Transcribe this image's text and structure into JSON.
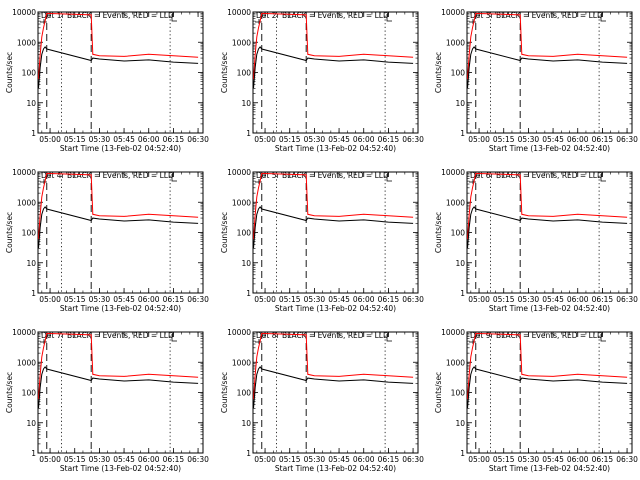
{
  "figure": {
    "xlabel": "Start Time (13-Feb-02 04:52:40)",
    "ylabel": "Counts/sec",
    "x_ticks": [
      "05:00",
      "05:15",
      "05:30",
      "05:45",
      "06:00",
      "06:15",
      "06:30"
    ],
    "y_ticks": [
      "1",
      "10",
      "100",
      "1000",
      "10000"
    ],
    "colors": {
      "events": "#000000",
      "lld": "#ff0000"
    }
  },
  "chart_data": [
    {
      "type": "line",
      "title": "Det 1r BLACK = Events, RED = LLD",
      "xlabel": "Start Time (13-Feb-02 04:52:40)",
      "ylabel": "Counts/sec",
      "ylog": true,
      "ylim": [
        1,
        10000
      ],
      "xlim": [
        "04:52:40",
        "06:33:00"
      ],
      "vlines_dashed": [
        "04:58:00",
        "05:25:00"
      ],
      "vlines_dotted": [
        "05:07:00",
        "06:13:00"
      ],
      "x": [
        "04:53",
        "04:54",
        "04:55",
        "04:56",
        "04:57",
        "04:58",
        "05:25",
        "05:26",
        "05:30",
        "05:45",
        "06:00",
        "06:15",
        "06:30"
      ],
      "series": [
        {
          "name": "Events",
          "values": [
            30,
            150,
            400,
            600,
            700,
            600,
            250,
            300,
            280,
            240,
            260,
            220,
            200
          ]
        },
        {
          "name": "LLD",
          "values": [
            60,
            400,
            1500,
            3000,
            5000,
            9000,
            8000,
            400,
            360,
            340,
            400,
            360,
            320
          ]
        }
      ]
    },
    {
      "type": "line",
      "title": "Det 2r BLACK = Events, RED = LLD",
      "xlabel": "Start Time (13-Feb-02 04:52:40)",
      "ylabel": "Counts/sec",
      "ylog": true,
      "ylim": [
        1,
        10000
      ],
      "xlim": [
        "04:52:40",
        "06:33:00"
      ],
      "vlines_dashed": [
        "04:58:00",
        "05:25:00"
      ],
      "vlines_dotted": [
        "05:07:00",
        "06:13:00"
      ],
      "x": [
        "04:53",
        "04:54",
        "04:55",
        "04:56",
        "04:57",
        "04:58",
        "05:25",
        "05:26",
        "05:30",
        "05:45",
        "06:00",
        "06:15",
        "06:30"
      ],
      "series": [
        {
          "name": "Events",
          "values": [
            30,
            150,
            400,
            600,
            700,
            600,
            250,
            300,
            280,
            240,
            260,
            220,
            200
          ]
        },
        {
          "name": "LLD",
          "values": [
            60,
            400,
            1500,
            3000,
            5000,
            9000,
            8000,
            400,
            360,
            340,
            400,
            360,
            320
          ]
        }
      ]
    },
    {
      "type": "line",
      "title": "Det 3r BLACK = Events, RED = LLD",
      "xlabel": "Start Time (13-Feb-02 04:52:40)",
      "ylabel": "Counts/sec",
      "ylog": true,
      "ylim": [
        1,
        10000
      ],
      "xlim": [
        "04:52:40",
        "06:33:00"
      ],
      "vlines_dashed": [
        "04:58:00",
        "05:25:00"
      ],
      "vlines_dotted": [
        "05:07:00",
        "06:13:00"
      ],
      "x": [
        "04:53",
        "04:54",
        "04:55",
        "04:56",
        "04:57",
        "04:58",
        "05:25",
        "05:26",
        "05:30",
        "05:45",
        "06:00",
        "06:15",
        "06:30"
      ],
      "series": [
        {
          "name": "Events",
          "values": [
            30,
            150,
            400,
            600,
            700,
            600,
            250,
            300,
            280,
            240,
            260,
            220,
            200
          ]
        },
        {
          "name": "LLD",
          "values": [
            60,
            400,
            1500,
            3000,
            5000,
            9000,
            8000,
            400,
            360,
            340,
            400,
            360,
            320
          ]
        }
      ]
    },
    {
      "type": "line",
      "title": "Det 4r BLACK = Events, RED = LLD",
      "xlabel": "Start Time (13-Feb-02 04:52:40)",
      "ylabel": "Counts/sec",
      "ylog": true,
      "ylim": [
        1,
        10000
      ],
      "xlim": [
        "04:52:40",
        "06:33:00"
      ],
      "vlines_dashed": [
        "04:58:00",
        "05:25:00"
      ],
      "vlines_dotted": [
        "05:07:00",
        "06:13:00"
      ],
      "x": [
        "04:53",
        "04:54",
        "04:55",
        "04:56",
        "04:57",
        "04:58",
        "05:25",
        "05:26",
        "05:30",
        "05:45",
        "06:00",
        "06:15",
        "06:30"
      ],
      "series": [
        {
          "name": "Events",
          "values": [
            30,
            150,
            400,
            600,
            700,
            600,
            250,
            300,
            280,
            240,
            260,
            220,
            200
          ]
        },
        {
          "name": "LLD",
          "values": [
            60,
            400,
            1500,
            3000,
            5000,
            9000,
            8000,
            400,
            360,
            340,
            400,
            360,
            320
          ]
        }
      ]
    },
    {
      "type": "line",
      "title": "Det 5r BLACK = Events, RED = LLD",
      "xlabel": "Start Time (13-Feb-02 04:52:40)",
      "ylabel": "Counts/sec",
      "ylog": true,
      "ylim": [
        1,
        10000
      ],
      "xlim": [
        "04:52:40",
        "06:33:00"
      ],
      "vlines_dashed": [
        "04:58:00",
        "05:25:00"
      ],
      "vlines_dotted": [
        "05:07:00",
        "06:13:00"
      ],
      "x": [
        "04:53",
        "04:54",
        "04:55",
        "04:56",
        "04:57",
        "04:58",
        "05:25",
        "05:26",
        "05:30",
        "05:45",
        "06:00",
        "06:15",
        "06:30"
      ],
      "series": [
        {
          "name": "Events",
          "values": [
            30,
            150,
            400,
            600,
            700,
            600,
            250,
            300,
            280,
            240,
            260,
            220,
            200
          ]
        },
        {
          "name": "LLD",
          "values": [
            60,
            400,
            1500,
            3000,
            5000,
            9000,
            8000,
            400,
            360,
            340,
            400,
            360,
            320
          ]
        }
      ]
    },
    {
      "type": "line",
      "title": "Det 6r BLACK = Events, RED = LLD",
      "xlabel": "Start Time (13-Feb-02 04:52:40)",
      "ylabel": "Counts/sec",
      "ylog": true,
      "ylim": [
        1,
        10000
      ],
      "xlim": [
        "04:52:40",
        "06:33:00"
      ],
      "vlines_dashed": [
        "04:58:00",
        "05:25:00"
      ],
      "vlines_dotted": [
        "05:07:00",
        "06:13:00"
      ],
      "x": [
        "04:53",
        "04:54",
        "04:55",
        "04:56",
        "04:57",
        "04:58",
        "05:25",
        "05:26",
        "05:30",
        "05:45",
        "06:00",
        "06:15",
        "06:30"
      ],
      "series": [
        {
          "name": "Events",
          "values": [
            30,
            150,
            400,
            600,
            700,
            600,
            250,
            300,
            280,
            240,
            260,
            220,
            200
          ]
        },
        {
          "name": "LLD",
          "values": [
            60,
            400,
            1500,
            3000,
            5000,
            9000,
            8000,
            400,
            360,
            340,
            400,
            360,
            320
          ]
        }
      ]
    },
    {
      "type": "line",
      "title": "Det 7r BLACK = Events, RED = LLD",
      "xlabel": "Start Time (13-Feb-02 04:52:40)",
      "ylabel": "Counts/sec",
      "ylog": true,
      "ylim": [
        1,
        10000
      ],
      "xlim": [
        "04:52:40",
        "06:33:00"
      ],
      "vlines_dashed": [
        "04:58:00",
        "05:25:00"
      ],
      "vlines_dotted": [
        "05:07:00",
        "06:13:00"
      ],
      "x": [
        "04:53",
        "04:54",
        "04:55",
        "04:56",
        "04:57",
        "04:58",
        "05:25",
        "05:26",
        "05:30",
        "05:45",
        "06:00",
        "06:15",
        "06:30"
      ],
      "series": [
        {
          "name": "Events",
          "values": [
            30,
            150,
            400,
            600,
            700,
            600,
            250,
            300,
            280,
            240,
            260,
            220,
            200
          ]
        },
        {
          "name": "LLD",
          "values": [
            60,
            400,
            1500,
            3000,
            5000,
            9000,
            8000,
            400,
            360,
            340,
            400,
            360,
            320
          ]
        }
      ]
    },
    {
      "type": "line",
      "title": "Det 8r BLACK = Events, RED = LLD",
      "xlabel": "Start Time (13-Feb-02 04:52:40)",
      "ylabel": "Counts/sec",
      "ylog": true,
      "ylim": [
        1,
        10000
      ],
      "xlim": [
        "04:52:40",
        "06:33:00"
      ],
      "vlines_dashed": [
        "04:58:00",
        "05:25:00"
      ],
      "vlines_dotted": [
        "05:07:00",
        "06:13:00"
      ],
      "x": [
        "04:53",
        "04:54",
        "04:55",
        "04:56",
        "04:57",
        "04:58",
        "05:25",
        "05:26",
        "05:30",
        "05:45",
        "06:00",
        "06:15",
        "06:30"
      ],
      "series": [
        {
          "name": "Events",
          "values": [
            30,
            150,
            400,
            600,
            700,
            600,
            250,
            300,
            280,
            240,
            260,
            220,
            200
          ]
        },
        {
          "name": "LLD",
          "values": [
            60,
            400,
            1500,
            3000,
            5000,
            9000,
            8000,
            400,
            360,
            340,
            400,
            360,
            320
          ]
        }
      ]
    },
    {
      "type": "line",
      "title": "Det 9r BLACK = Events, RED = LLD",
      "xlabel": "Start Time (13-Feb-02 04:52:40)",
      "ylabel": "Counts/sec",
      "ylog": true,
      "ylim": [
        1,
        10000
      ],
      "xlim": [
        "04:52:40",
        "06:33:00"
      ],
      "vlines_dashed": [
        "04:58:00",
        "05:25:00"
      ],
      "vlines_dotted": [
        "05:07:00",
        "06:13:00"
      ],
      "x": [
        "04:53",
        "04:54",
        "04:55",
        "04:56",
        "04:57",
        "04:58",
        "05:25",
        "05:26",
        "05:30",
        "05:45",
        "06:00",
        "06:15",
        "06:30"
      ],
      "series": [
        {
          "name": "Events",
          "values": [
            30,
            150,
            400,
            600,
            700,
            600,
            250,
            300,
            280,
            240,
            260,
            220,
            200
          ]
        },
        {
          "name": "LLD",
          "values": [
            60,
            400,
            1500,
            3000,
            5000,
            9000,
            8000,
            400,
            360,
            340,
            400,
            360,
            320
          ]
        }
      ]
    }
  ]
}
